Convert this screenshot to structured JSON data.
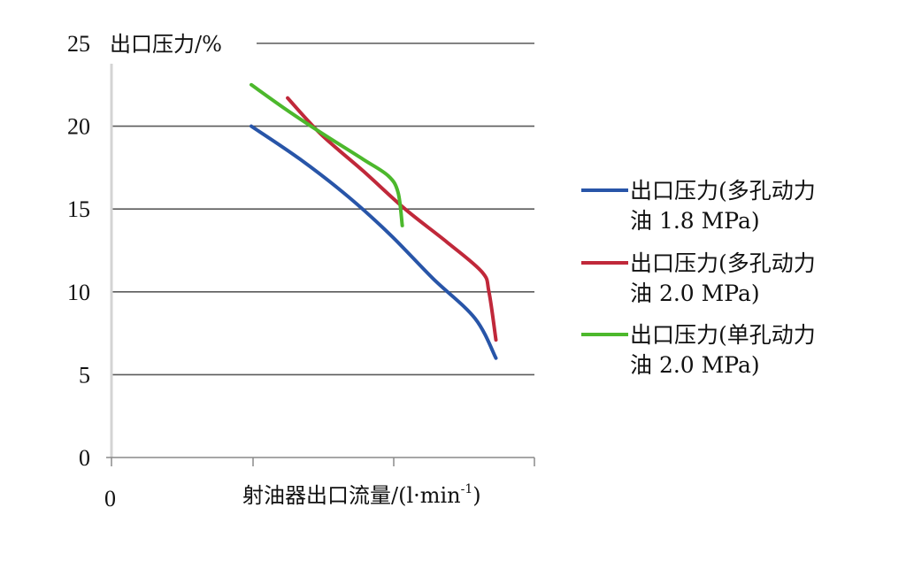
{
  "chart_data": {
    "type": "line",
    "ylabel": "出口压力/%",
    "xlabel": {
      "main": "射油器出口流量/(l·min",
      "sup": "-1",
      "close": ")"
    },
    "x_tick_label": "0",
    "y_ticks": [
      0,
      5,
      10,
      15,
      20,
      25
    ],
    "ylim": [
      0,
      25
    ],
    "grid": true,
    "legend_position": "right",
    "series": [
      {
        "name_line1": "出口压力(多孔动力",
        "name_line2": "油 1.8 MPa)",
        "color": "#2855a8",
        "points": [
          [
            1.0,
            20.0
          ],
          [
            1.35,
            18.0
          ],
          [
            1.7,
            15.7
          ],
          [
            2.0,
            13.4
          ],
          [
            2.3,
            10.8
          ],
          [
            2.6,
            8.4
          ],
          [
            2.75,
            6.0
          ]
        ]
      },
      {
        "name_line1": "出口压力(多孔动力",
        "name_line2": "油 2.0 MPa)",
        "color": "#c0283a",
        "points": [
          [
            1.26,
            21.7
          ],
          [
            1.5,
            19.5
          ],
          [
            1.8,
            17.3
          ],
          [
            2.1,
            15.0
          ],
          [
            2.4,
            13.0
          ],
          [
            2.65,
            11.2
          ],
          [
            2.7,
            10.0
          ],
          [
            2.75,
            7.1
          ]
        ]
      },
      {
        "name_line1": "出口压力(单孔动力",
        "name_line2": "油 2.0 MPa)",
        "color": "#4cb82c",
        "points": [
          [
            1.0,
            22.5
          ],
          [
            1.25,
            21.0
          ],
          [
            1.5,
            19.6
          ],
          [
            1.8,
            18.0
          ],
          [
            1.98,
            17.0
          ],
          [
            2.05,
            16.0
          ],
          [
            2.08,
            14.0
          ]
        ]
      }
    ]
  }
}
